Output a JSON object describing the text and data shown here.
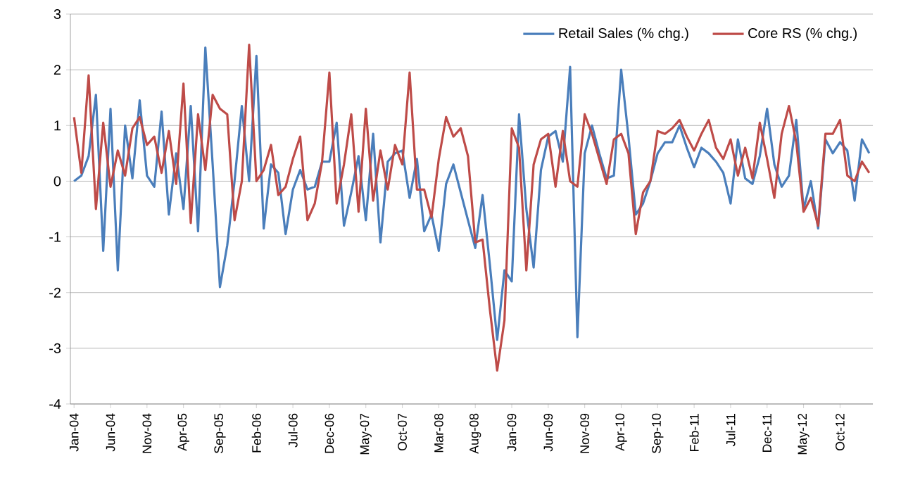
{
  "chart_data": {
    "type": "line",
    "categories": [
      "Jan-04",
      null,
      null,
      null,
      null,
      "Jun-04",
      null,
      null,
      null,
      null,
      "Nov-04",
      null,
      null,
      null,
      null,
      "Apr-05",
      null,
      null,
      null,
      null,
      "Sep-05",
      null,
      null,
      null,
      null,
      "Feb-06",
      null,
      null,
      null,
      null,
      "Jul-06",
      null,
      null,
      null,
      null,
      "Dec-06",
      null,
      null,
      null,
      null,
      "May-07",
      null,
      null,
      null,
      null,
      "Oct-07",
      null,
      null,
      null,
      null,
      "Mar-08",
      null,
      null,
      null,
      null,
      "Aug-08",
      null,
      null,
      null,
      null,
      "Jan-09",
      null,
      null,
      null,
      null,
      "Jun-09",
      null,
      null,
      null,
      null,
      "Nov-09",
      null,
      null,
      null,
      null,
      "Apr-10",
      null,
      null,
      null,
      null,
      "Sep-10",
      null,
      null,
      null,
      null,
      "Feb-11",
      null,
      null,
      null,
      null,
      "Jul-11",
      null,
      null,
      null,
      null,
      "Dec-11",
      null,
      null,
      null,
      null,
      "May-12",
      null,
      null,
      null,
      null,
      "Oct-12",
      null,
      null,
      null,
      null
    ],
    "series": [
      {
        "name": "Retail Sales (% chg.)",
        "color": "#4a7ebb",
        "values": [
          0.0,
          0.1,
          0.45,
          1.55,
          -1.25,
          1.3,
          -1.6,
          1.0,
          0.05,
          1.45,
          0.1,
          -0.1,
          1.25,
          -0.6,
          0.5,
          -0.5,
          1.35,
          -0.9,
          2.4,
          0.3,
          -1.9,
          -1.15,
          0.0,
          1.35,
          0.0,
          2.25,
          -0.85,
          0.3,
          0.15,
          -0.95,
          -0.15,
          0.2,
          -0.15,
          -0.1,
          0.35,
          0.35,
          1.05,
          -0.8,
          -0.2,
          0.45,
          -0.7,
          0.85,
          -1.1,
          0.35,
          0.5,
          0.55,
          -0.3,
          0.4,
          -0.9,
          -0.6,
          -1.25,
          -0.05,
          0.3,
          -0.2,
          -0.7,
          -1.2,
          -0.25,
          -1.5,
          -2.85,
          -1.6,
          -1.8,
          1.2,
          -0.5,
          -1.55,
          0.2,
          0.8,
          0.9,
          0.35,
          2.05,
          -2.8,
          0.5,
          1.0,
          0.5,
          0.05,
          0.1,
          2.0,
          0.8,
          -0.6,
          -0.4,
          0.0,
          0.5,
          0.7,
          0.7,
          1.0,
          0.6,
          0.25,
          0.6,
          0.5,
          0.35,
          0.15,
          -0.4,
          0.75,
          0.05,
          -0.05,
          0.45,
          1.3,
          0.3,
          -0.1,
          0.1,
          1.1,
          -0.5,
          0.0,
          -0.85,
          0.75,
          0.5,
          0.7,
          0.55,
          -0.35,
          0.75,
          0.5
        ]
      },
      {
        "name": "Core RS (% chg.)",
        "color": "#be4b48",
        "values": [
          1.15,
          0.15,
          1.9,
          -0.5,
          1.05,
          -0.1,
          0.55,
          0.1,
          0.95,
          1.15,
          0.65,
          0.8,
          0.15,
          0.9,
          -0.05,
          1.75,
          -0.75,
          1.2,
          0.2,
          1.55,
          1.3,
          1.2,
          -0.7,
          0.0,
          2.45,
          0.0,
          0.2,
          0.65,
          -0.25,
          -0.1,
          0.4,
          0.8,
          -0.7,
          -0.4,
          0.35,
          1.95,
          -0.4,
          0.3,
          1.2,
          -0.55,
          1.3,
          -0.35,
          0.55,
          -0.15,
          0.65,
          0.3,
          1.95,
          -0.15,
          -0.15,
          -0.65,
          0.4,
          1.15,
          0.8,
          0.95,
          0.45,
          -1.1,
          -1.05,
          -2.3,
          -3.4,
          -2.5,
          0.95,
          0.6,
          -1.6,
          0.3,
          0.75,
          0.85,
          -0.1,
          0.9,
          0.0,
          -0.1,
          1.2,
          0.85,
          0.4,
          -0.05,
          0.75,
          0.85,
          0.5,
          -0.95,
          -0.2,
          0.0,
          0.9,
          0.85,
          0.95,
          1.1,
          0.8,
          0.55,
          0.85,
          1.1,
          0.6,
          0.4,
          0.75,
          0.1,
          0.6,
          0.05,
          1.05,
          0.4,
          -0.3,
          0.85,
          1.35,
          0.7,
          -0.55,
          -0.3,
          -0.8,
          0.85,
          0.85,
          1.1,
          0.1,
          0.0,
          0.35,
          0.15
        ]
      }
    ],
    "ylim": [
      -4,
      3
    ],
    "yticks": [
      -4,
      -3,
      -2,
      -1,
      0,
      1,
      2,
      3
    ],
    "grid": "y",
    "legend": "top right"
  }
}
